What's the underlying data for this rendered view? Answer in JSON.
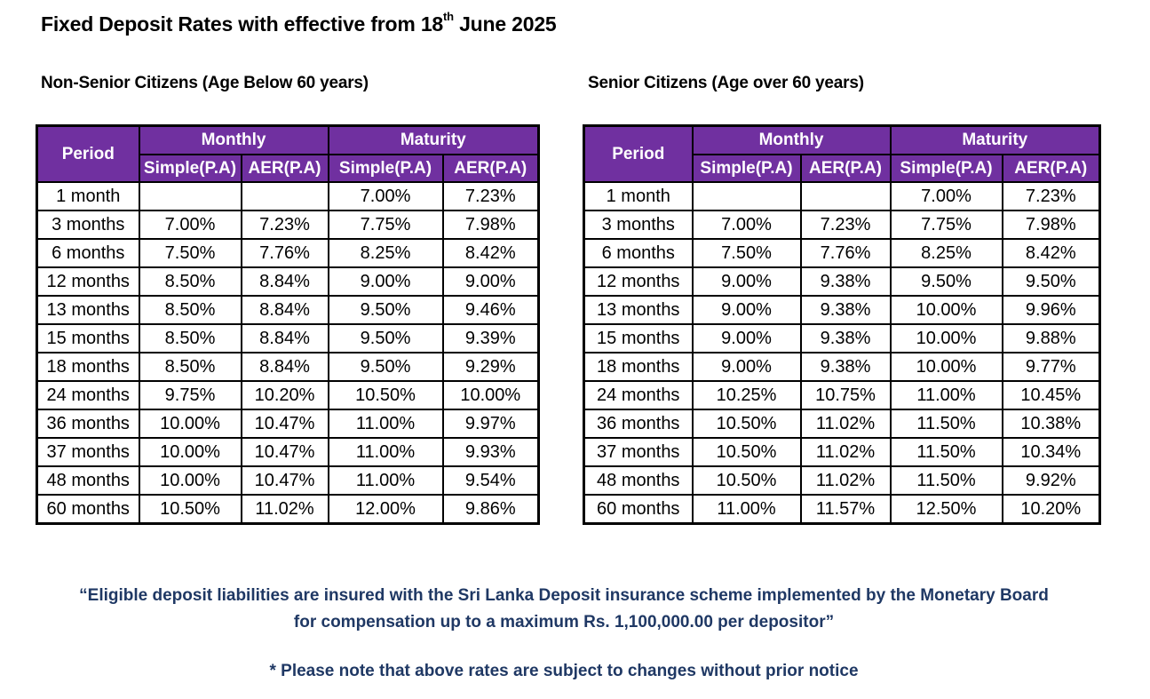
{
  "title": {
    "prefix": "Fixed Deposit Rates with effective from 18",
    "sup": "th",
    "suffix": " June 2025"
  },
  "left": {
    "heading": "Non-Senior Citizens (Age Below 60 years)",
    "header": {
      "period": "Period",
      "monthly": "Monthly",
      "maturity": "Maturity",
      "simple": "Simple(P.A)",
      "aer": "AER(P.A)"
    },
    "rows": [
      {
        "period": "1 month",
        "m_simple": "",
        "m_aer": "",
        "mat_simple": "7.00%",
        "mat_aer": "7.23%"
      },
      {
        "period": "3 months",
        "m_simple": "7.00%",
        "m_aer": "7.23%",
        "mat_simple": "7.75%",
        "mat_aer": "7.98%"
      },
      {
        "period": "6 months",
        "m_simple": "7.50%",
        "m_aer": "7.76%",
        "mat_simple": "8.25%",
        "mat_aer": "8.42%"
      },
      {
        "period": "12 months",
        "m_simple": "8.50%",
        "m_aer": "8.84%",
        "mat_simple": "9.00%",
        "mat_aer": "9.00%"
      },
      {
        "period": "13 months",
        "m_simple": "8.50%",
        "m_aer": "8.84%",
        "mat_simple": "9.50%",
        "mat_aer": "9.46%"
      },
      {
        "period": "15 months",
        "m_simple": "8.50%",
        "m_aer": "8.84%",
        "mat_simple": "9.50%",
        "mat_aer": "9.39%"
      },
      {
        "period": "18 months",
        "m_simple": "8.50%",
        "m_aer": "8.84%",
        "mat_simple": "9.50%",
        "mat_aer": "9.29%"
      },
      {
        "period": "24 months",
        "m_simple": "9.75%",
        "m_aer": "10.20%",
        "mat_simple": "10.50%",
        "mat_aer": "10.00%"
      },
      {
        "period": "36 months",
        "m_simple": "10.00%",
        "m_aer": "10.47%",
        "mat_simple": "11.00%",
        "mat_aer": "9.97%"
      },
      {
        "period": "37 months",
        "m_simple": "10.00%",
        "m_aer": "10.47%",
        "mat_simple": "11.00%",
        "mat_aer": "9.93%"
      },
      {
        "period": "48 months",
        "m_simple": "10.00%",
        "m_aer": "10.47%",
        "mat_simple": "11.00%",
        "mat_aer": "9.54%"
      },
      {
        "period": "60 months",
        "m_simple": "10.50%",
        "m_aer": "11.02%",
        "mat_simple": "12.00%",
        "mat_aer": "9.86%"
      }
    ]
  },
  "right": {
    "heading": "Senior Citizens (Age over 60 years)",
    "header": {
      "period": "Period",
      "monthly": "Monthly",
      "maturity": "Maturity",
      "simple": "Simple(P.A)",
      "aer": "AER(P.A)"
    },
    "rows": [
      {
        "period": "1 month",
        "m_simple": "",
        "m_aer": "",
        "mat_simple": "7.00%",
        "mat_aer": "7.23%"
      },
      {
        "period": "3 months",
        "m_simple": "7.00%",
        "m_aer": "7.23%",
        "mat_simple": "7.75%",
        "mat_aer": "7.98%"
      },
      {
        "period": "6 months",
        "m_simple": "7.50%",
        "m_aer": "7.76%",
        "mat_simple": "8.25%",
        "mat_aer": "8.42%"
      },
      {
        "period": "12 months",
        "m_simple": "9.00%",
        "m_aer": "9.38%",
        "mat_simple": "9.50%",
        "mat_aer": "9.50%"
      },
      {
        "period": "13 months",
        "m_simple": "9.00%",
        "m_aer": "9.38%",
        "mat_simple": "10.00%",
        "mat_aer": "9.96%"
      },
      {
        "period": "15 months",
        "m_simple": "9.00%",
        "m_aer": "9.38%",
        "mat_simple": "10.00%",
        "mat_aer": "9.88%"
      },
      {
        "period": "18 months",
        "m_simple": "9.00%",
        "m_aer": "9.38%",
        "mat_simple": "10.00%",
        "mat_aer": "9.77%"
      },
      {
        "period": "24 months",
        "m_simple": "10.25%",
        "m_aer": "10.75%",
        "mat_simple": "11.00%",
        "mat_aer": "10.45%"
      },
      {
        "period": "36 months",
        "m_simple": "10.50%",
        "m_aer": "11.02%",
        "mat_simple": "11.50%",
        "mat_aer": "10.38%"
      },
      {
        "period": "37 months",
        "m_simple": "10.50%",
        "m_aer": "11.02%",
        "mat_simple": "11.50%",
        "mat_aer": "10.34%"
      },
      {
        "period": "48 months",
        "m_simple": "10.50%",
        "m_aer": "11.02%",
        "mat_simple": "11.50%",
        "mat_aer": "9.92%"
      },
      {
        "period": "60 months",
        "m_simple": "11.00%",
        "m_aer": "11.57%",
        "mat_simple": "12.50%",
        "mat_aer": "10.20%"
      }
    ]
  },
  "notes": {
    "insurance_line1": "“Eligible deposit liabilities are insured with the Sri Lanka Deposit insurance scheme implemented by the Monetary Board",
    "insurance_line2": "for compensation up to a maximum Rs. 1,100,000.00 per depositor”",
    "disclaimer": "* Please note that above rates are subject to changes without prior notice"
  },
  "colors": {
    "header_bg": "#7030a0",
    "header_text": "#ffffff",
    "note_text": "#1f3864"
  }
}
